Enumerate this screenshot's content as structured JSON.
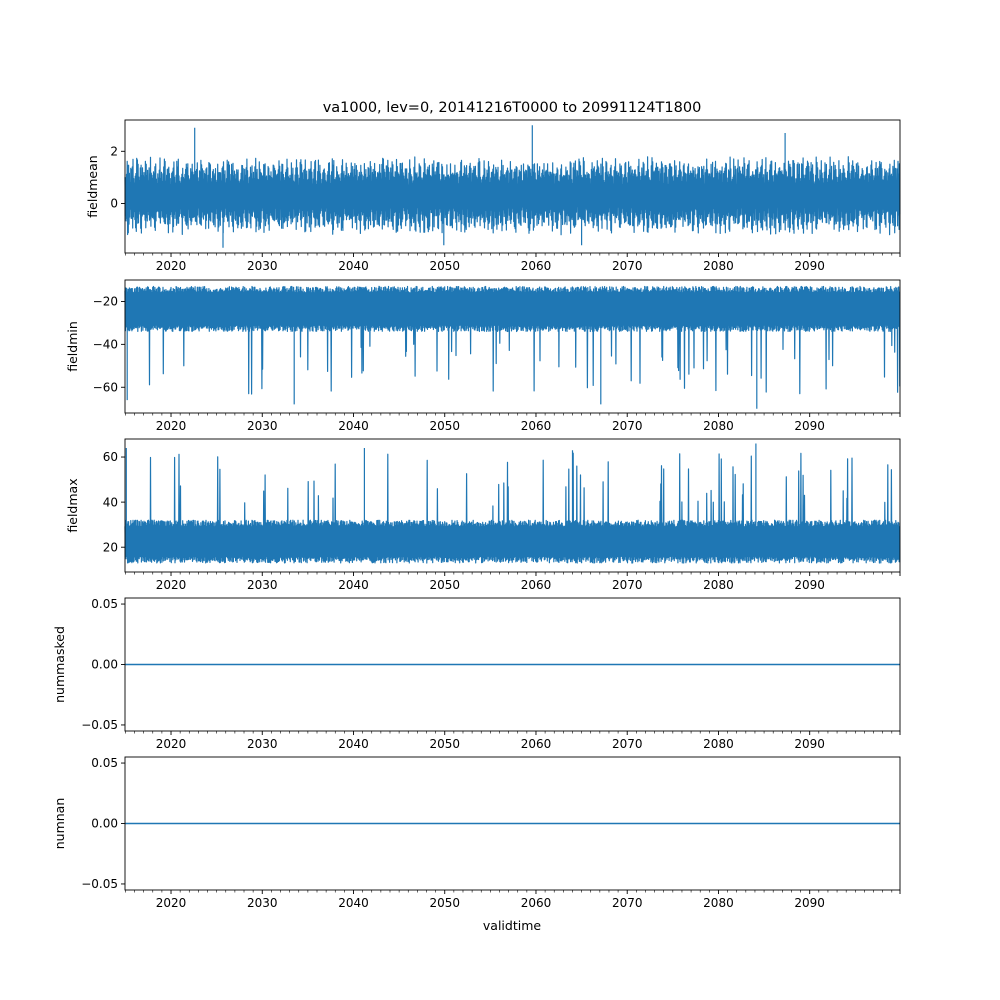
{
  "figure": {
    "title": "va1000, lev=0, 20141216T0000 to 20991124T1800",
    "xlabel": "validtime",
    "line_color": "#1f77b4"
  },
  "chart_data": [
    {
      "type": "line",
      "ylabel": "fieldmean",
      "x_range": [
        "2014-12-16T00:00",
        "2099-11-24T18:00"
      ],
      "xticks": [
        "2020",
        "2030",
        "2040",
        "2050",
        "2060",
        "2070",
        "2080",
        "2090"
      ],
      "ylim": [
        -1.9,
        3.2
      ],
      "yticks": [
        {
          "value": 2,
          "label": "2"
        },
        {
          "value": 0,
          "label": "0"
        }
      ],
      "envelope": {
        "typical_low": -1.2,
        "typical_high": 1.8,
        "min": -1.8,
        "max": 3.0
      },
      "notable_peaks": [
        {
          "x": 2022.6,
          "y": 2.9
        },
        {
          "x": 2059.6,
          "y": 3.0
        },
        {
          "x": 2087.3,
          "y": 2.7
        }
      ],
      "notable_troughs": [
        {
          "x": 2025.7,
          "y": -1.7
        },
        {
          "x": 2049.9,
          "y": -1.6
        },
        {
          "x": 2065.0,
          "y": -1.6
        }
      ]
    },
    {
      "type": "line",
      "ylabel": "fieldmin",
      "x_range": [
        "2014-12-16T00:00",
        "2099-11-24T18:00"
      ],
      "xticks": [
        "2020",
        "2030",
        "2040",
        "2050",
        "2060",
        "2070",
        "2080",
        "2090"
      ],
      "ylim": [
        -72,
        -10
      ],
      "yticks": [
        {
          "value": -20,
          "label": "−20"
        },
        {
          "value": -40,
          "label": "−40"
        },
        {
          "value": -60,
          "label": "−60"
        }
      ],
      "envelope": {
        "typical_low": -34,
        "typical_high": -13,
        "min": -70,
        "max": -12
      },
      "notable_troughs": [
        {
          "x": 2015.2,
          "y": -66
        },
        {
          "x": 2033.5,
          "y": -68
        },
        {
          "x": 2067.1,
          "y": -68
        },
        {
          "x": 2084.2,
          "y": -70
        }
      ]
    },
    {
      "type": "line",
      "ylabel": "fieldmax",
      "x_range": [
        "2014-12-16T00:00",
        "2099-11-24T18:00"
      ],
      "xticks": [
        "2020",
        "2030",
        "2040",
        "2050",
        "2060",
        "2070",
        "2080",
        "2090"
      ],
      "ylim": [
        9,
        68
      ],
      "yticks": [
        {
          "value": 60,
          "label": "60"
        },
        {
          "value": 40,
          "label": "40"
        },
        {
          "value": 20,
          "label": "20"
        }
      ],
      "envelope": {
        "typical_low": 13,
        "typical_high": 32,
        "min": 11,
        "max": 66
      },
      "notable_peaks": [
        {
          "x": 2015.1,
          "y": 64
        },
        {
          "x": 2041.2,
          "y": 64
        },
        {
          "x": 2064.0,
          "y": 63
        },
        {
          "x": 2084.1,
          "y": 66
        }
      ]
    },
    {
      "type": "line",
      "ylabel": "nummasked",
      "x_range": [
        "2014-12-16T00:00",
        "2099-11-24T18:00"
      ],
      "xticks": [
        "2020",
        "2030",
        "2040",
        "2050",
        "2060",
        "2070",
        "2080",
        "2090"
      ],
      "ylim": [
        -0.055,
        0.055
      ],
      "yticks": [
        {
          "value": 0.05,
          "label": "0.05"
        },
        {
          "value": 0,
          "label": "0.00"
        },
        {
          "value": -0.05,
          "label": "−0.05"
        }
      ],
      "constant_value": 0
    },
    {
      "type": "line",
      "ylabel": "numnan",
      "x_range": [
        "2014-12-16T00:00",
        "2099-11-24T18:00"
      ],
      "xticks": [
        "2020",
        "2030",
        "2040",
        "2050",
        "2060",
        "2070",
        "2080",
        "2090"
      ],
      "ylim": [
        -0.055,
        0.055
      ],
      "yticks": [
        {
          "value": 0.05,
          "label": "0.05"
        },
        {
          "value": 0,
          "label": "0.00"
        },
        {
          "value": -0.05,
          "label": "−0.05"
        }
      ],
      "constant_value": 0
    }
  ]
}
